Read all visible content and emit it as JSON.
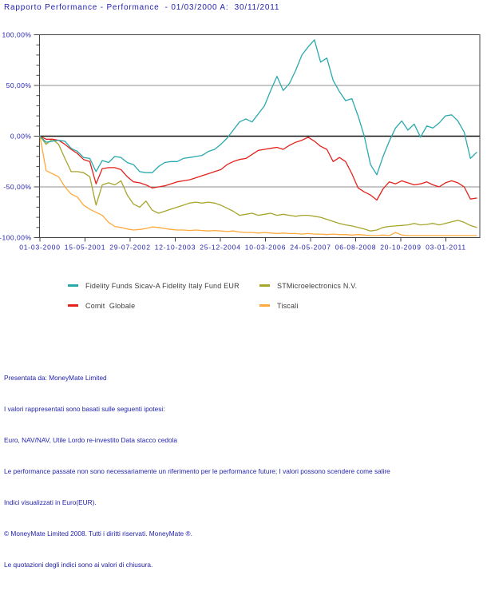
{
  "title": "Rapporto Performance - Performance  - 01/03/2000 A:  30/11/2011",
  "colors": {
    "axis_text": "#2323ae",
    "title_text": "#2323ae",
    "footer_text": "#2323ae",
    "legend_text": "#3c3c3c",
    "grid": "#8f8f8f",
    "zero_line": "#111111",
    "plot_border": "#444444",
    "background": "#ffffff",
    "series_fidelity": "#2aa9ad",
    "series_stm": "#a6a52c",
    "series_comit": "#e3221c",
    "series_tiscali": "#ffa93c"
  },
  "chart_data": {
    "type": "line",
    "title": "",
    "xlabel": "",
    "ylabel": "",
    "y_unit": "%",
    "ylim": [
      -100,
      100
    ],
    "grid": "horizontal lines at 50, 0, -50",
    "legend_position": "below chart, two columns",
    "x_start_date": "01-03-2000",
    "x_end_date": "30-11-2011",
    "sample_interval_months": 2,
    "y_tick_labels": [
      "100,00%",
      "50,00%",
      "0,00%",
      "-50,00%",
      "-100,00%"
    ],
    "x_tick_labels": [
      "01-03-2000",
      "15-05-2001",
      "29-07-2002",
      "12-10-2003",
      "25-12-2004",
      "10-03-2006",
      "24-05-2007",
      "06-08-2008",
      "20-10-2009",
      "03-01-2011"
    ],
    "series": [
      {
        "name": "Fidelity Funds Sicav-A Fidelity Italy Fund EUR",
        "color": "#2aa9ad",
        "values": [
          0,
          -6,
          -5,
          -4,
          -5,
          -12,
          -15,
          -21,
          -22,
          -35,
          -24,
          -26,
          -20,
          -21,
          -26,
          -28,
          -35,
          -36,
          -36,
          -30,
          -26,
          -25,
          -25,
          -22,
          -21,
          -20,
          -19,
          -15,
          -13,
          -8,
          -2,
          6,
          14,
          17,
          14,
          22,
          30,
          45,
          59,
          45,
          52,
          65,
          80,
          88,
          95,
          73,
          77,
          55,
          44,
          35,
          37,
          20,
          0,
          -28,
          -38,
          -20,
          -5,
          8,
          15,
          6,
          12,
          -1,
          10,
          8,
          13,
          20,
          21,
          15,
          4,
          -22,
          -16
        ]
      },
      {
        "name": "STMicroelectronics N.V.",
        "color": "#a6a52c",
        "values": [
          0,
          -8,
          -3,
          -8,
          -22,
          -35,
          -35,
          -36,
          -40,
          -68,
          -48,
          -46,
          -48,
          -44,
          -58,
          -67,
          -70,
          -64,
          -73,
          -76,
          -74,
          -72,
          -70,
          -68,
          -66,
          -65,
          -66,
          -65,
          -66,
          -68,
          -71,
          -74,
          -78,
          -77,
          -76,
          -78,
          -77,
          -76,
          -78,
          -77,
          -78,
          -79,
          -78,
          -78,
          -79,
          -80,
          -82,
          -84,
          -86,
          -87.5,
          -88.5,
          -90,
          -91.5,
          -93.5,
          -92.5,
          -90,
          -89,
          -88.5,
          -88,
          -87.5,
          -86,
          -87.5,
          -87,
          -86,
          -87.5,
          -86,
          -84.5,
          -83,
          -85,
          -88,
          -90
        ]
      },
      {
        "name": "Comit  Globale",
        "color": "#e3221c",
        "values": [
          0,
          -3,
          -3,
          -4,
          -8,
          -13,
          -17,
          -23,
          -25,
          -47,
          -32,
          -31,
          -31,
          -33,
          -40,
          -45,
          -46,
          -48,
          -51,
          -50,
          -49,
          -47,
          -45,
          -44,
          -43,
          -41,
          -39,
          -37,
          -35,
          -33,
          -28,
          -25,
          -23,
          -22,
          -18,
          -14,
          -13,
          -12,
          -11,
          -13,
          -9,
          -6,
          -4,
          -1,
          -5,
          -10,
          -13,
          -25,
          -21,
          -25,
          -37,
          -51,
          -55,
          -58,
          -63,
          -52,
          -45,
          -47,
          -44,
          -46,
          -48,
          -47,
          -45,
          -48,
          -50,
          -46,
          -44,
          -46,
          -50,
          -62,
          -61
        ]
      },
      {
        "name": "Tiscali",
        "color": "#ffa93c",
        "values": [
          0,
          -34,
          -37,
          -40,
          -50,
          -57,
          -60,
          -68,
          -72,
          -75,
          -78,
          -85,
          -89,
          -90,
          -91.5,
          -92.5,
          -92,
          -91,
          -89.5,
          -90,
          -91,
          -92,
          -92.5,
          -92.5,
          -93,
          -92.5,
          -93,
          -93.5,
          -93,
          -93.5,
          -94,
          -93.5,
          -94.5,
          -95,
          -95,
          -95.5,
          -95,
          -95.5,
          -96,
          -95.5,
          -96,
          -96,
          -96.5,
          -96,
          -96.5,
          -96.5,
          -97,
          -96.5,
          -97,
          -97,
          -97.5,
          -97,
          -97.5,
          -98,
          -98,
          -97.5,
          -98,
          -95,
          -97.5,
          -98,
          -98,
          -98,
          -98,
          -98,
          -98,
          -98,
          -98,
          -98,
          -98,
          -98,
          -98
        ]
      }
    ]
  },
  "legend": {
    "items": [
      {
        "label": "Fidelity Funds Sicav-A Fidelity Italy Fund EUR",
        "color": "#2aa9ad"
      },
      {
        "label": "STMicroelectronics N.V.",
        "color": "#a6a52c"
      },
      {
        "label": "Comit  Globale",
        "color": "#e3221c"
      },
      {
        "label": "Tiscali",
        "color": "#ffa93c"
      }
    ]
  },
  "footer": {
    "lines": [
      "Presentata da: MoneyMate Limited",
      "I valori rappresentati sono basati sulle seguenti ipotesi:",
      "Euro, NAV/NAV, Utile Lordo re-investito Data stacco cedola",
      "Le performance passate non sono necessariamente un riferimento per le performance future; I valori possono scendere come salire",
      "Indici visualizzati in Euro(EUR).",
      "© MoneyMate Limited 2008. Tutti i diritti riservati. MoneyMate ®.",
      "Le quotazioni degli indici sono ai valori di chiusura."
    ]
  }
}
